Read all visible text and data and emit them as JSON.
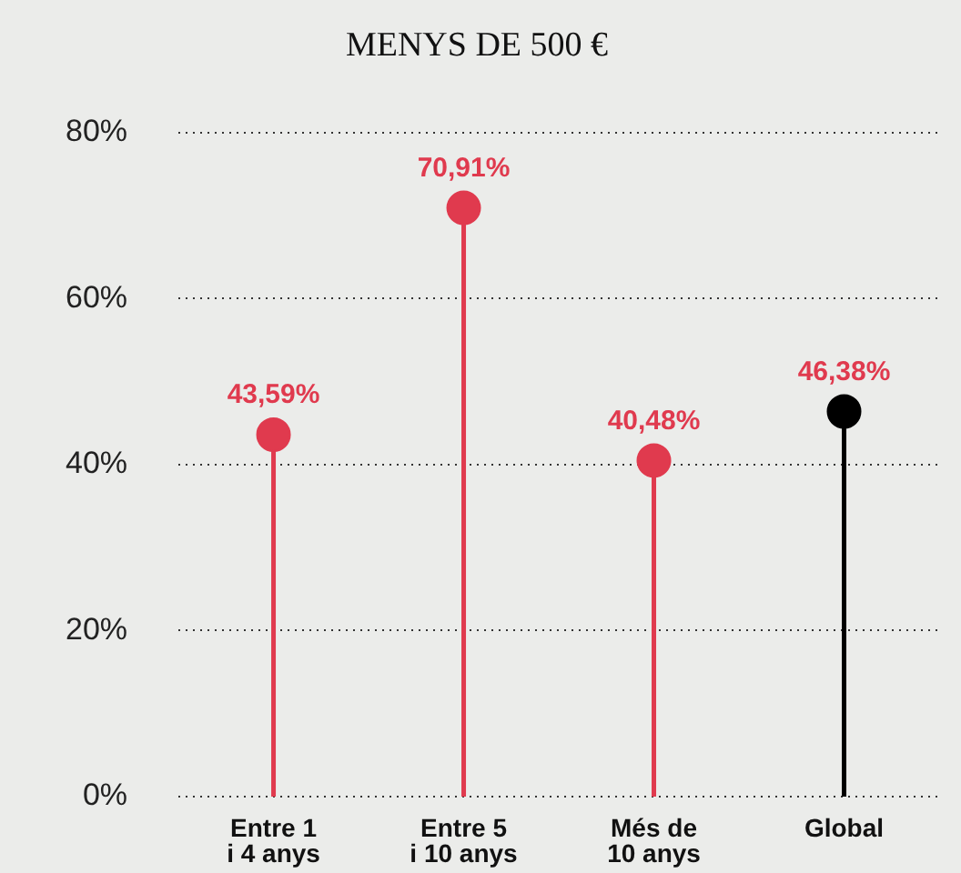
{
  "chart_data": {
    "type": "lollipop",
    "title": "MENYS DE 500 €",
    "categories": [
      "Entre 1 i 4 anys",
      "Entre 5 i 10 anys",
      "Més de 10 anys",
      "Global"
    ],
    "values": [
      43.59,
      70.91,
      40.48,
      46.38
    ],
    "value_labels": [
      "43,59%",
      "70,91%",
      "40,48%",
      "46,38%"
    ],
    "colors": [
      "#e03a4e",
      "#e03a4e",
      "#e03a4e",
      "#000000"
    ],
    "ylim": [
      0,
      80
    ],
    "yticks": [
      {
        "value": 0,
        "label": "0%"
      },
      {
        "value": 20,
        "label": "20%"
      },
      {
        "value": 40,
        "label": "40%"
      },
      {
        "value": 60,
        "label": "60%"
      },
      {
        "value": 80,
        "label": "80%"
      }
    ],
    "grid": "y",
    "marker": "circle",
    "legend": false
  }
}
